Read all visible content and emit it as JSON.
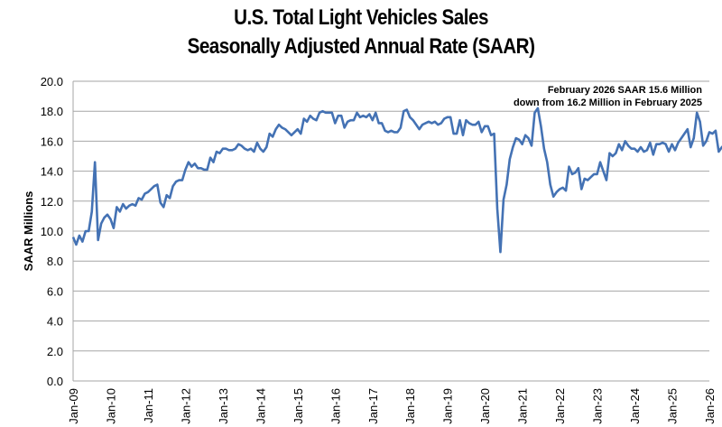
{
  "chart_data": {
    "type": "line",
    "title": "U.S. Total Light Vehicles Sales",
    "subtitle": "Seasonally Adjusted Annual Rate (SAAR)",
    "xlabel": "",
    "ylabel": "SAAR Millions",
    "ylim": [
      0,
      20
    ],
    "yticks": [
      "0.0",
      "2.0",
      "4.0",
      "6.0",
      "8.0",
      "10.0",
      "12.0",
      "14.0",
      "16.0",
      "18.0",
      "20.0"
    ],
    "xticks": [
      "Jan-09",
      "Jan-10",
      "Jan-11",
      "Jan-12",
      "Jan-13",
      "Jan-14",
      "Jan-15",
      "Jan-16",
      "Jan-17",
      "Jan-18",
      "Jan-19",
      "Jan-20",
      "Jan-21",
      "Jan-22",
      "Jan-23",
      "Jan-24",
      "Jan-25",
      "Jan-26"
    ],
    "grid": true,
    "legend": "none",
    "annotation": [
      "February 2026 SAAR 15.6 Million",
      "down from 16.2 Million in February 2025"
    ],
    "x_start": "Jan-09",
    "x_frequency": "monthly",
    "series": [
      {
        "name": "SAAR",
        "color": "#4472b4",
        "values": [
          9.6,
          9.1,
          9.7,
          9.3,
          10.0,
          10.0,
          11.3,
          14.6,
          9.4,
          10.5,
          10.9,
          11.1,
          10.8,
          10.2,
          11.6,
          11.3,
          11.8,
          11.5,
          11.7,
          11.8,
          11.7,
          12.2,
          12.1,
          12.5,
          12.6,
          12.8,
          13.0,
          13.1,
          11.9,
          11.6,
          12.4,
          12.2,
          13.0,
          13.3,
          13.4,
          13.4,
          14.1,
          14.6,
          14.3,
          14.5,
          14.2,
          14.2,
          14.1,
          14.1,
          14.9,
          14.6,
          15.3,
          15.2,
          15.5,
          15.5,
          15.4,
          15.4,
          15.5,
          15.8,
          15.7,
          15.5,
          15.4,
          15.5,
          15.3,
          15.9,
          15.5,
          15.3,
          15.6,
          16.5,
          16.3,
          16.8,
          17.1,
          16.9,
          16.8,
          16.6,
          16.4,
          16.6,
          16.8,
          16.5,
          17.5,
          17.3,
          17.7,
          17.5,
          17.4,
          17.9,
          18.0,
          17.9,
          17.9,
          17.9,
          17.2,
          17.7,
          17.7,
          16.9,
          17.3,
          17.4,
          17.4,
          17.9,
          17.6,
          17.7,
          17.6,
          17.8,
          17.4,
          17.9,
          17.2,
          17.2,
          16.7,
          16.6,
          16.7,
          16.6,
          16.6,
          16.9,
          18.0,
          18.1,
          17.6,
          17.4,
          17.1,
          16.8,
          17.1,
          17.2,
          17.3,
          17.2,
          17.3,
          17.1,
          17.2,
          17.5,
          17.6,
          17.6,
          16.5,
          16.5,
          17.4,
          16.4,
          17.4,
          17.2,
          17.1,
          17.1,
          17.3,
          16.6,
          17.0,
          17.0,
          16.4,
          16.5,
          11.5,
          8.6,
          12.1,
          13.1,
          14.8,
          15.6,
          16.2,
          16.1,
          15.8,
          16.4,
          16.2,
          15.7,
          17.9,
          18.2,
          17.0,
          15.5,
          14.6,
          13.1,
          12.3,
          12.6,
          12.8,
          12.9,
          12.7,
          14.3,
          13.8,
          13.9,
          14.2,
          12.8,
          13.5,
          13.4,
          13.6,
          13.8,
          13.8,
          14.6,
          14.0,
          13.4,
          15.2,
          15.0,
          15.2,
          15.8,
          15.4,
          16.0,
          15.7,
          15.5,
          15.5,
          15.3,
          15.6,
          15.3,
          15.4,
          15.9,
          15.1,
          15.8,
          15.8,
          15.9,
          15.8,
          15.3,
          15.8,
          15.4,
          15.9,
          16.2,
          16.5,
          16.8,
          15.6,
          16.2,
          17.9,
          17.3,
          15.7,
          16.0,
          16.6,
          16.5,
          16.7,
          15.3,
          15.6,
          15.8,
          14.9,
          15.6
        ]
      }
    ]
  }
}
